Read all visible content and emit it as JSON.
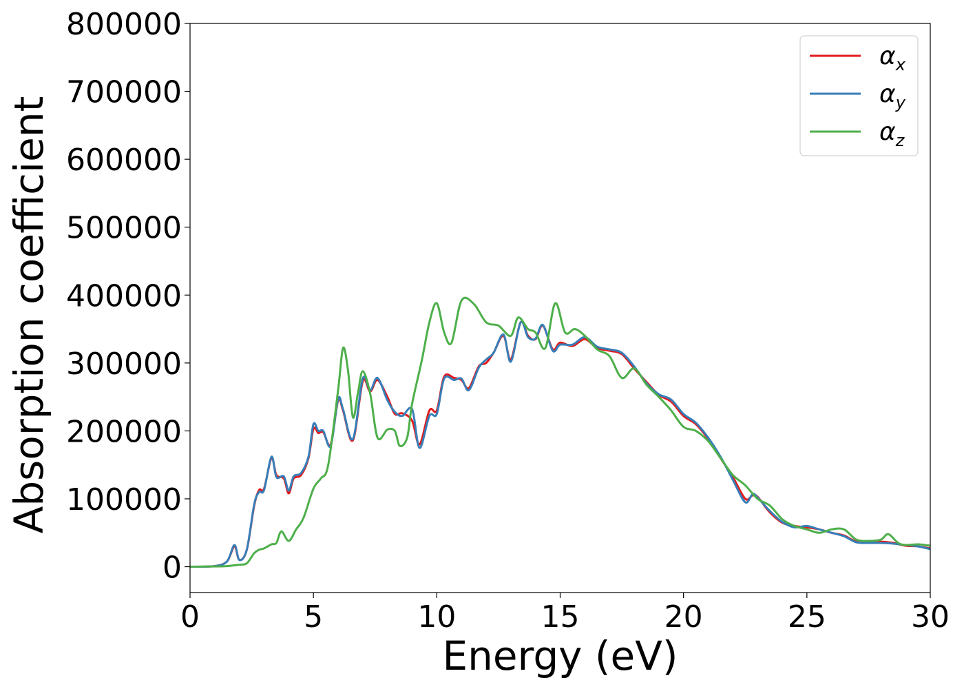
{
  "chart_data": {
    "type": "line",
    "title": "",
    "xlabel": "Energy (eV)",
    "ylabel": "Absorption coefficient",
    "xlim": [
      0,
      30
    ],
    "ylim": [
      -38000,
      800000
    ],
    "xticks": [
      0,
      5,
      10,
      15,
      20,
      25,
      30
    ],
    "yticks": [
      0,
      100000,
      200000,
      300000,
      400000,
      500000,
      600000,
      700000,
      800000
    ],
    "grid": false,
    "legend_position": "top-right",
    "series": [
      {
        "name": "α",
        "subscript": "x",
        "color": "#e41a1c",
        "x": [
          0,
          1,
          1.5,
          1.8,
          2,
          2.3,
          2.6,
          2.8,
          3.0,
          3.3,
          3.5,
          3.8,
          4.0,
          4.2,
          4.5,
          4.8,
          5.0,
          5.2,
          5.4,
          5.7,
          6.0,
          6.2,
          6.6,
          7.0,
          7.3,
          7.6,
          8.0,
          8.3,
          8.6,
          9.0,
          9.3,
          9.7,
          10.0,
          10.3,
          10.7,
          11.0,
          11.3,
          11.7,
          12.0,
          12.3,
          12.7,
          13.0,
          13.4,
          13.7,
          14.0,
          14.3,
          14.7,
          15.0,
          15.5,
          16.0,
          16.5,
          17.0,
          17.5,
          18.0,
          18.5,
          19.0,
          19.5,
          20.0,
          20.5,
          21.0,
          21.5,
          22.0,
          22.5,
          22.8,
          23.0,
          23.5,
          24.0,
          24.5,
          25.0,
          25.5,
          26.0,
          26.5,
          27.0,
          27.5,
          28.0,
          28.5,
          29.0,
          29.5,
          30.0
        ],
        "y": [
          0,
          1000,
          8000,
          30000,
          10000,
          25000,
          90000,
          113000,
          115000,
          160000,
          135000,
          130000,
          108000,
          130000,
          135000,
          160000,
          203000,
          197000,
          198000,
          180000,
          245000,
          230000,
          186000,
          273000,
          258000,
          275000,
          250000,
          225000,
          226000,
          215000,
          180000,
          230000,
          230000,
          280000,
          278000,
          275000,
          263000,
          295000,
          300000,
          315000,
          340000,
          305000,
          360000,
          340000,
          335000,
          355000,
          320000,
          330000,
          325000,
          335000,
          322000,
          318000,
          313000,
          292000,
          272000,
          253000,
          243000,
          222000,
          210000,
          188000,
          160000,
          132000,
          100000,
          105000,
          103000,
          80000,
          65000,
          60000,
          58000,
          55000,
          50000,
          46000,
          37000,
          35000,
          37000,
          35000,
          31000,
          30000,
          27000
        ]
      },
      {
        "name": "α",
        "subscript": "y",
        "color": "#377eb8",
        "x": [
          0,
          1,
          1.5,
          1.8,
          2,
          2.3,
          2.6,
          2.8,
          3.0,
          3.3,
          3.5,
          3.8,
          4.0,
          4.2,
          4.5,
          4.8,
          5.0,
          5.2,
          5.4,
          5.7,
          6.0,
          6.2,
          6.6,
          7.0,
          7.3,
          7.6,
          8.0,
          8.3,
          8.6,
          9.0,
          9.3,
          9.7,
          10.0,
          10.3,
          10.7,
          11.0,
          11.3,
          11.7,
          12.0,
          12.3,
          12.7,
          13.0,
          13.4,
          13.7,
          14.0,
          14.3,
          14.7,
          15.0,
          15.5,
          16.0,
          16.5,
          17.0,
          17.5,
          18.0,
          18.5,
          19.0,
          19.5,
          20.0,
          20.5,
          21.0,
          21.5,
          22.0,
          22.5,
          22.8,
          23.0,
          23.5,
          24.0,
          24.5,
          25.0,
          25.5,
          26.0,
          26.5,
          27.0,
          27.5,
          28.0,
          28.5,
          29.0,
          29.5,
          30.0
        ],
        "y": [
          0,
          1000,
          8000,
          32000,
          10000,
          25000,
          92000,
          110000,
          113000,
          162000,
          132000,
          133000,
          112000,
          133000,
          138000,
          162000,
          210000,
          200000,
          200000,
          178000,
          247000,
          232000,
          188000,
          277000,
          260000,
          278000,
          245000,
          228000,
          222000,
          232000,
          175000,
          222000,
          225000,
          277000,
          275000,
          277000,
          260000,
          293000,
          305000,
          315000,
          342000,
          302000,
          360000,
          338000,
          336000,
          356000,
          318000,
          327000,
          327000,
          338000,
          324000,
          320000,
          315000,
          295000,
          270000,
          254000,
          246000,
          225000,
          212000,
          190000,
          162000,
          128000,
          95000,
          107000,
          102000,
          82000,
          66000,
          58000,
          60000,
          55000,
          50000,
          45000,
          36000,
          35000,
          35000,
          34000,
          32000,
          30000,
          26000
        ]
      },
      {
        "name": "α",
        "subscript": "z",
        "color": "#4daf4a",
        "x": [
          0,
          1,
          1.5,
          2.0,
          2.3,
          2.6,
          2.8,
          3.0,
          3.3,
          3.5,
          3.7,
          4.0,
          4.3,
          4.6,
          5.0,
          5.3,
          5.6,
          6.0,
          6.2,
          6.4,
          6.6,
          6.8,
          7.0,
          7.3,
          7.6,
          8.0,
          8.3,
          8.5,
          8.8,
          9.0,
          9.4,
          9.7,
          10.0,
          10.3,
          10.6,
          11.0,
          11.5,
          12.0,
          12.5,
          13.0,
          13.3,
          13.7,
          14.0,
          14.4,
          14.8,
          15.2,
          15.6,
          16.0,
          16.5,
          17.0,
          17.5,
          18.0,
          18.5,
          19.0,
          19.5,
          20.0,
          20.5,
          21.0,
          21.5,
          22.0,
          22.5,
          23.0,
          23.5,
          24.0,
          24.5,
          25.0,
          25.5,
          26.0,
          26.5,
          27.0,
          27.5,
          28.0,
          28.3,
          28.7,
          29.0,
          29.5,
          30.0
        ],
        "y": [
          0,
          500,
          1000,
          3000,
          5000,
          20000,
          25000,
          27000,
          33000,
          35000,
          52000,
          38000,
          55000,
          72000,
          115000,
          130000,
          150000,
          260000,
          322000,
          290000,
          220000,
          255000,
          288000,
          255000,
          190000,
          202000,
          200000,
          178000,
          190000,
          240000,
          305000,
          360000,
          388000,
          345000,
          330000,
          392000,
          387000,
          360000,
          355000,
          340000,
          367000,
          350000,
          345000,
          322000,
          388000,
          345000,
          350000,
          340000,
          320000,
          310000,
          278000,
          292000,
          268000,
          250000,
          230000,
          206000,
          200000,
          185000,
          160000,
          135000,
          120000,
          100000,
          90000,
          70000,
          60000,
          55000,
          50000,
          55000,
          55000,
          40000,
          38000,
          40000,
          48000,
          35000,
          32000,
          33000,
          31000
        ]
      }
    ]
  }
}
